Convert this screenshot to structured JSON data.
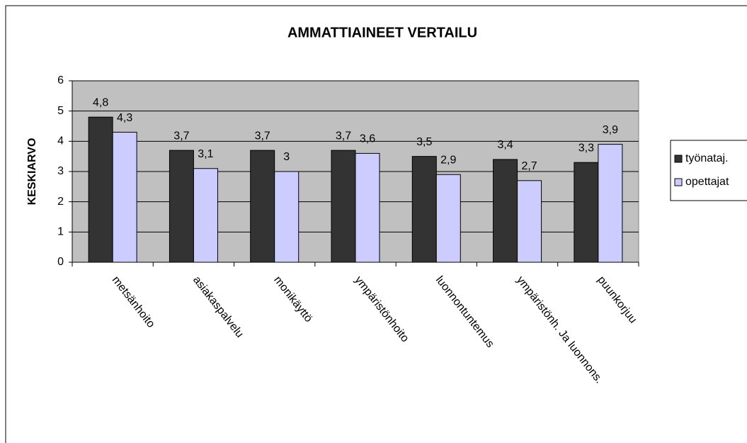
{
  "chart_data": {
    "type": "bar",
    "title": "AMMATTIAINEET VERTAILU",
    "y_label": "KESKIARVO",
    "categories": [
      "metsänhoito",
      "asiakaspalvelu",
      "monikäyttö",
      "ympäristönhoito",
      "luonnontuntemus",
      "ympäristönh. Ja luonnons.",
      "puunkorjuu"
    ],
    "series": [
      {
        "name": "työnataj.",
        "color": "#333333",
        "values": [
          4.8,
          3.7,
          3.7,
          3.7,
          3.5,
          3.4,
          3.3
        ],
        "value_labels": [
          "4,8",
          "3,7",
          "3,7",
          "3,7",
          "3,5",
          "3,4",
          "3,3"
        ]
      },
      {
        "name": "opettajat",
        "color": "#ccccff",
        "values": [
          4.3,
          3.1,
          3,
          3.6,
          2.9,
          2.7,
          3.9
        ],
        "value_labels": [
          "4,3",
          "3,1",
          "3",
          "3,6",
          "2,9",
          "2,7",
          "3,9"
        ]
      }
    ],
    "ylim": [
      0,
      6
    ],
    "yticks": [
      0,
      1,
      2,
      3,
      4,
      5,
      6
    ],
    "grid": true,
    "legend": "right",
    "plot_background": "#c0c0c0"
  }
}
